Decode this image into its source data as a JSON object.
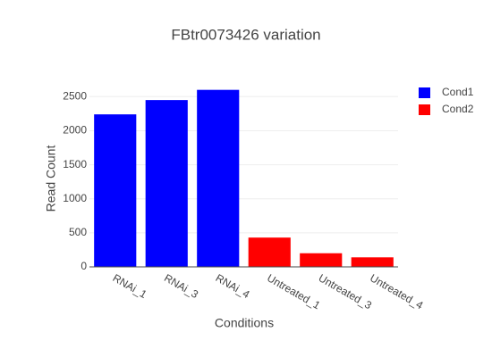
{
  "chart_data": {
    "type": "bar",
    "title": "FBtr0073426 variation",
    "x_label": "Conditions",
    "y_label": "Read Count",
    "categories": [
      "RNAi_1",
      "RNAi_3",
      "RNAi_4",
      "Untreated_1",
      "Untreated_3",
      "Untreated_4"
    ],
    "series": [
      {
        "name": "Cond1",
        "color": "#0000ff",
        "values": [
          2240,
          2450,
          2600,
          null,
          null,
          null
        ]
      },
      {
        "name": "Cond2",
        "color": "#ff0000",
        "values": [
          null,
          null,
          null,
          430,
          200,
          140
        ]
      }
    ],
    "ylim": [
      0,
      2740
    ],
    "yticks": [
      0,
      500,
      1000,
      1500,
      2000,
      2500
    ],
    "grid": true,
    "legend": "top-right"
  }
}
